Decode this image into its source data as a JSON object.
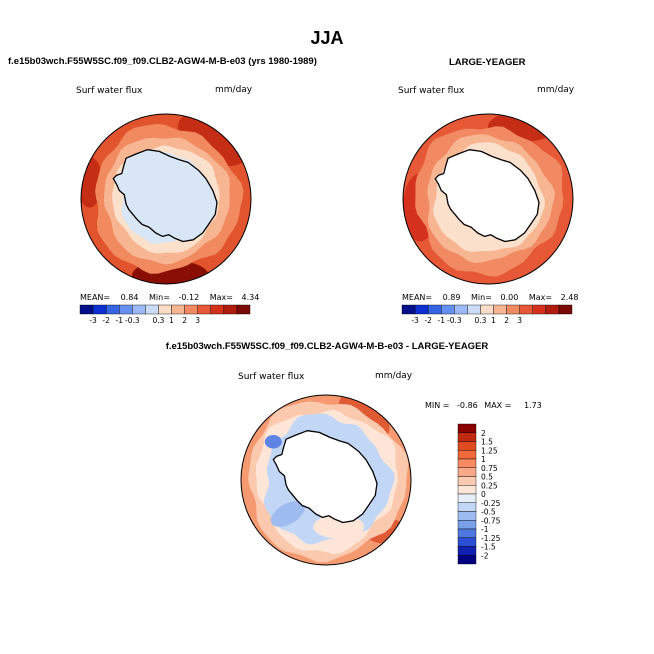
{
  "figure": {
    "title": "JJA",
    "left_case": "f.e15b03wch.F55W5SC.f09_f09.CLB2-AGW4-M-B-e03 (yrs 1980-1989)",
    "right_case": "LARGE-YEAGER",
    "diff_case": "f.e15b03wch.F55W5SC.f09_f09.CLB2-AGW4-M-B-e03 - LARGE-YEAGER"
  },
  "chart_data": [
    {
      "type": "heatmap",
      "projection": "south-polar-stereographic",
      "variable": "Surf water flux",
      "units": "mm/day",
      "stats": {
        "mean_label": "MEAN=",
        "mean": "0.84",
        "min_label": "Min=",
        "min": "-0.12",
        "max_label": "Max=",
        "max": "4.34"
      },
      "colorbar_ticks": [
        "-3",
        "-2",
        "-1",
        "-0.3",
        "0.3",
        "1",
        "2",
        "3"
      ],
      "colorbar_colors": [
        "#000e8a",
        "#0b2fd0",
        "#3565e3",
        "#6690ef",
        "#9bb9f6",
        "#cbdcf9",
        "#fbdcc6",
        "#f7b592",
        "#f18a63",
        "#e65836",
        "#d4321c",
        "#b01c0e",
        "#7a0a04"
      ],
      "continent_color": "#d9e6f5"
    },
    {
      "type": "heatmap",
      "projection": "south-polar-stereographic",
      "variable": "Surf water flux",
      "units": "mm/day",
      "stats": {
        "mean_label": "MEAN=",
        "mean": "0.89",
        "min_label": "Min=",
        "min": "0.00",
        "max_label": "Max=",
        "max": "2.48"
      },
      "colorbar_ticks": [
        "-3",
        "-2",
        "-1",
        "-0.3",
        "0.3",
        "1",
        "2",
        "3"
      ],
      "colorbar_colors": [
        "#000e8a",
        "#0b2fd0",
        "#3565e3",
        "#6690ef",
        "#9bb9f6",
        "#cbdcf9",
        "#fbdcc6",
        "#f7b592",
        "#f18a63",
        "#e65836",
        "#d4321c",
        "#b01c0e",
        "#7a0a04"
      ],
      "continent_color": "#ffffff"
    },
    {
      "type": "heatmap",
      "projection": "south-polar-stereographic",
      "variable": "Surf water flux",
      "units": "mm/day",
      "stats": {
        "min_label": "MIN =",
        "min": "-0.86",
        "max_label": "MAX =",
        "max": "1.73"
      },
      "colorbar_ticks": [
        "2",
        "1.5",
        "1.25",
        "1",
        "0.75",
        "0.5",
        "0.25",
        "0",
        "-0.25",
        "-0.5",
        "-0.75",
        "-1",
        "-1.25",
        "-1.5",
        "-2"
      ],
      "colorbar_colors": [
        "#8a0000",
        "#c02a10",
        "#e04a20",
        "#f06a3a",
        "#f68a60",
        "#f9a987",
        "#fbcab0",
        "#fde6d8",
        "#e5eef9",
        "#c2d7f5",
        "#9fbcf0",
        "#7ba0ea",
        "#4f78e0",
        "#2a4fd4",
        "#1020b0",
        "#000080"
      ],
      "continent_color": "#ffffff"
    }
  ]
}
